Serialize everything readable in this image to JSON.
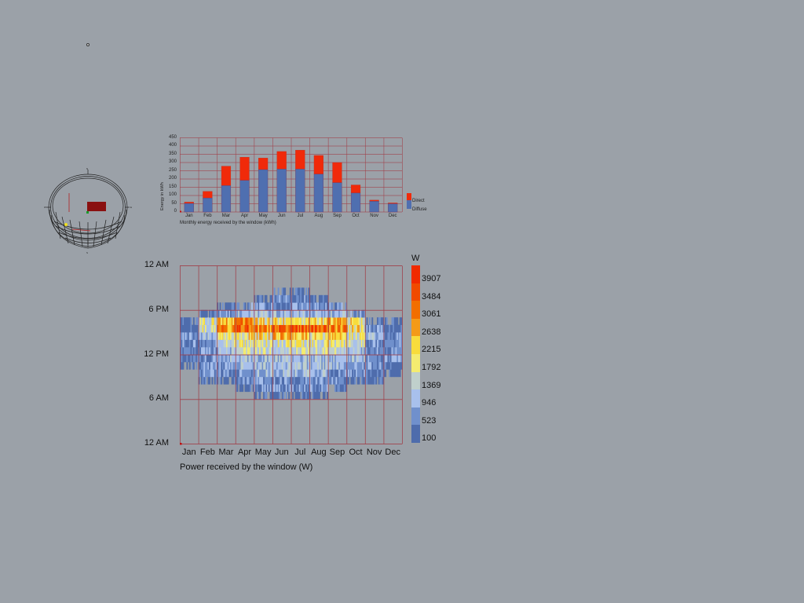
{
  "canvas": {
    "background": "#9ba1a8"
  },
  "sunpath": {
    "label": "sun-path-diagram",
    "compass": {
      "north": "N",
      "south": "S",
      "east": "E",
      "west": "W"
    }
  },
  "chart_data": [
    {
      "type": "bar",
      "stacked": true,
      "title": "Monthly energy received by the window (kWh)",
      "xlabel": "",
      "ylabel": "Energy in kWh",
      "ylim": [
        0,
        450
      ],
      "yticks": [
        0,
        50,
        100,
        150,
        200,
        250,
        300,
        350,
        400,
        450
      ],
      "grid": true,
      "legend_position": "right",
      "categories": [
        "Jan",
        "Feb",
        "Mar",
        "Apr",
        "May",
        "Jun",
        "Jul",
        "Aug",
        "Sep",
        "Oct",
        "Nov",
        "Dec"
      ],
      "series": [
        {
          "name": "Diffuse",
          "color": "#4f6fb0",
          "values": [
            52,
            85,
            160,
            192,
            257,
            260,
            260,
            230,
            178,
            115,
            65,
            50
          ]
        },
        {
          "name": "Direct",
          "color": "#f02a0a",
          "values": [
            8,
            40,
            118,
            140,
            70,
            107,
            115,
            113,
            122,
            49,
            7,
            5
          ]
        }
      ],
      "totals": [
        60,
        125,
        278,
        332,
        327,
        367,
        375,
        343,
        300,
        164,
        72,
        55
      ]
    },
    {
      "type": "heatmap",
      "title": "Power received by the window (W)",
      "xlabel": "",
      "ylabel": "",
      "x_categories": [
        "Jan",
        "Feb",
        "Mar",
        "Apr",
        "May",
        "Jun",
        "Jul",
        "Aug",
        "Sep",
        "Oct",
        "Nov",
        "Dec"
      ],
      "y_ticks": [
        "12 AM",
        "6 AM",
        "12 PM",
        "6 PM",
        "12 AM"
      ],
      "y_range_hours": [
        0,
        24
      ],
      "legend_title": "W",
      "legend_values": [
        3907,
        3484,
        3061,
        2638,
        2215,
        1792,
        1369,
        946,
        523,
        100
      ],
      "legend_colors": [
        "#f02a00",
        "#f04a00",
        "#f26e00",
        "#f49a18",
        "#f8dc3c",
        "#f4ec70",
        "#c0d0cc",
        "#a8c0ec",
        "#7090cc",
        "#4e6cac"
      ],
      "levels_note": "grid[month][hour] = color bin index (0 none, 1=100W .. 10=3907W); hour 0 = midnight",
      "grid": [
        [
          0,
          0,
          0,
          0,
          0,
          0,
          0,
          0,
          0,
          0,
          1,
          1,
          2,
          2,
          2,
          1,
          1,
          0,
          0,
          0,
          0,
          0,
          0,
          0
        ],
        [
          0,
          0,
          0,
          0,
          0,
          0,
          0,
          0,
          1,
          2,
          2,
          2,
          2,
          2,
          3,
          5,
          5,
          1,
          0,
          0,
          0,
          0,
          0,
          0
        ],
        [
          0,
          0,
          0,
          0,
          0,
          0,
          0,
          0,
          1,
          2,
          2,
          3,
          3,
          4,
          6,
          8,
          7,
          2,
          1,
          0,
          0,
          0,
          0,
          0
        ],
        [
          0,
          0,
          0,
          0,
          0,
          0,
          0,
          1,
          2,
          2,
          3,
          3,
          4,
          5,
          6,
          9,
          8,
          3,
          2,
          0,
          0,
          0,
          0,
          0
        ],
        [
          0,
          0,
          0,
          0,
          0,
          0,
          1,
          2,
          2,
          3,
          3,
          3,
          4,
          5,
          6,
          8,
          6,
          3,
          2,
          1,
          0,
          0,
          0,
          0
        ],
        [
          0,
          0,
          0,
          0,
          0,
          0,
          1,
          2,
          2,
          3,
          3,
          3,
          4,
          5,
          7,
          9,
          6,
          3,
          2,
          2,
          1,
          0,
          0,
          0
        ],
        [
          0,
          0,
          0,
          0,
          0,
          0,
          1,
          2,
          2,
          3,
          3,
          3,
          4,
          5,
          7,
          9,
          6,
          3,
          2,
          2,
          1,
          0,
          0,
          0
        ],
        [
          0,
          0,
          0,
          0,
          0,
          0,
          1,
          2,
          2,
          3,
          3,
          3,
          4,
          5,
          6,
          9,
          6,
          3,
          2,
          1,
          0,
          0,
          0,
          0
        ],
        [
          0,
          0,
          0,
          0,
          0,
          0,
          0,
          1,
          2,
          2,
          3,
          3,
          4,
          5,
          6,
          8,
          7,
          3,
          2,
          0,
          0,
          0,
          0,
          0
        ],
        [
          0,
          0,
          0,
          0,
          0,
          0,
          0,
          0,
          1,
          2,
          2,
          3,
          3,
          4,
          5,
          6,
          6,
          2,
          0,
          0,
          0,
          0,
          0,
          0
        ],
        [
          0,
          0,
          0,
          0,
          0,
          0,
          0,
          0,
          1,
          1,
          2,
          2,
          2,
          2,
          3,
          2,
          1,
          0,
          0,
          0,
          0,
          0,
          0,
          0
        ],
        [
          0,
          0,
          0,
          0,
          0,
          0,
          0,
          0,
          0,
          1,
          1,
          2,
          2,
          2,
          2,
          1,
          1,
          0,
          0,
          0,
          0,
          0,
          0,
          0
        ]
      ]
    }
  ],
  "bar_chart": {
    "yticks": [
      "0",
      "50",
      "100",
      "150",
      "200",
      "250",
      "300",
      "350",
      "400",
      "450"
    ],
    "ylabel": "Energy in kWh",
    "months": [
      "Jan",
      "Feb",
      "Mar",
      "Apr",
      "May",
      "Jun",
      "Jul",
      "Aug",
      "Sep",
      "Oct",
      "Nov",
      "Dec"
    ],
    "title": "Monthly energy received by the window (kWh)",
    "legend": {
      "direct": "Direct",
      "diffuse": "Diffuse"
    },
    "grid_color": "#a0404a"
  },
  "heatmap": {
    "ylabels": [
      "12 AM",
      "6 PM",
      "12 PM",
      "6 AM",
      "12 AM"
    ],
    "months": [
      "Jan",
      "Feb",
      "Mar",
      "Apr",
      "May",
      "Jun",
      "Jul",
      "Aug",
      "Sep",
      "Oct",
      "Nov",
      "Dec"
    ],
    "title": "Power received by the window (W)",
    "legend_title": "W",
    "legend_values": [
      "3907",
      "3484",
      "3061",
      "2638",
      "2215",
      "1792",
      "1369",
      "946",
      "523",
      "100"
    ]
  }
}
